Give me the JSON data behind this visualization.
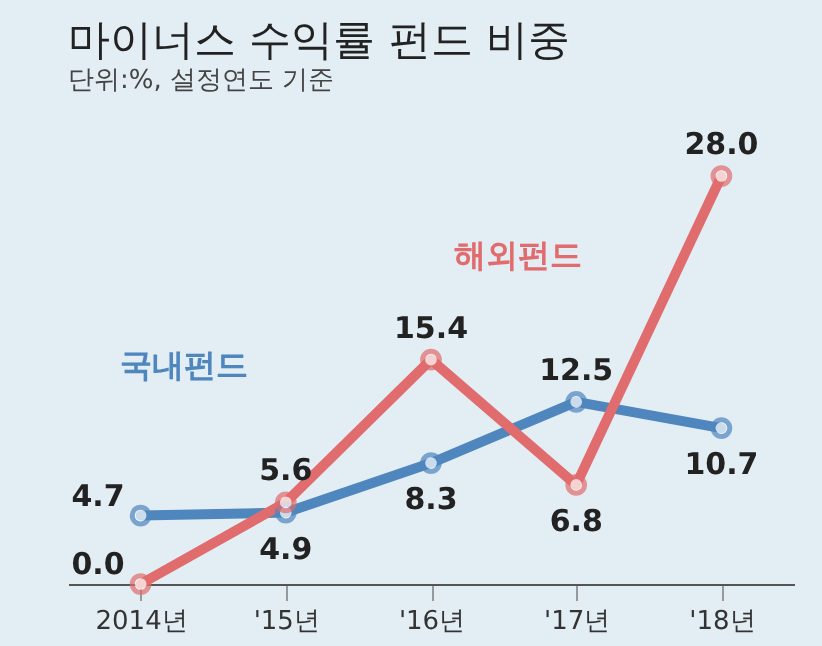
{
  "chart_data": {
    "type": "line",
    "title": "마이너스 수익률 펀드 비중",
    "subtitle": "단위:%, 설정연도 기준",
    "categories": [
      "2014년",
      "'15년",
      "'16년",
      "'17년",
      "'18년"
    ],
    "series": [
      {
        "name": "국내펀드",
        "color": "#4f86be",
        "values": [
          4.7,
          4.9,
          8.3,
          12.5,
          10.7
        ],
        "value_labels": [
          "4.7",
          "4.9",
          "8.3",
          "12.5",
          "10.7"
        ]
      },
      {
        "name": "해외펀드",
        "color": "#e06c6e",
        "values": [
          0.0,
          5.6,
          15.4,
          6.8,
          28.0
        ],
        "value_labels": [
          "0.0",
          "5.6",
          "15.4",
          "6.8",
          "28.0"
        ]
      }
    ],
    "marker": "circle",
    "line_style": "solid",
    "grid": false
  }
}
